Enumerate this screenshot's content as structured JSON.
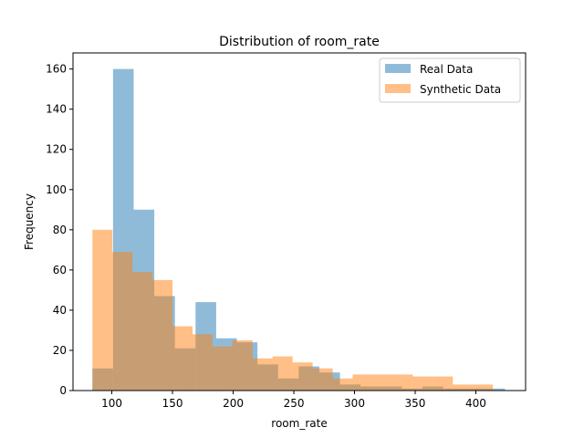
{
  "chart_data": {
    "type": "histogram",
    "title": "Distribution of room_rate",
    "xlabel": "room_rate",
    "ylabel": "Frequency",
    "xlim": [
      68,
      441
    ],
    "ylim": [
      0,
      168
    ],
    "xticks": [
      100,
      150,
      200,
      250,
      300,
      350,
      400
    ],
    "yticks": [
      0,
      20,
      40,
      60,
      80,
      100,
      120,
      140,
      160
    ],
    "grid": false,
    "legend_position": "top-right",
    "series": [
      {
        "name": "Real Data",
        "color": "#1f77b4",
        "alpha": 0.5,
        "bins": [
          {
            "x0": 84,
            "x1": 101,
            "count": 11
          },
          {
            "x0": 101,
            "x1": 118,
            "count": 160
          },
          {
            "x0": 118,
            "x1": 135,
            "count": 90
          },
          {
            "x0": 135,
            "x1": 152,
            "count": 47
          },
          {
            "x0": 152,
            "x1": 169,
            "count": 21
          },
          {
            "x0": 169,
            "x1": 186,
            "count": 44
          },
          {
            "x0": 186,
            "x1": 203,
            "count": 26
          },
          {
            "x0": 203,
            "x1": 220,
            "count": 24
          },
          {
            "x0": 220,
            "x1": 237,
            "count": 13
          },
          {
            "x0": 237,
            "x1": 254,
            "count": 6
          },
          {
            "x0": 254,
            "x1": 271,
            "count": 12
          },
          {
            "x0": 271,
            "x1": 288,
            "count": 9
          },
          {
            "x0": 288,
            "x1": 305,
            "count": 3
          },
          {
            "x0": 305,
            "x1": 322,
            "count": 2
          },
          {
            "x0": 322,
            "x1": 339,
            "count": 2
          },
          {
            "x0": 339,
            "x1": 356,
            "count": 1
          },
          {
            "x0": 356,
            "x1": 373,
            "count": 2
          },
          {
            "x0": 373,
            "x1": 390,
            "count": 1
          },
          {
            "x0": 390,
            "x1": 407,
            "count": 1
          },
          {
            "x0": 407,
            "x1": 424,
            "count": 1
          }
        ]
      },
      {
        "name": "Synthetic Data",
        "color": "#ff7f0e",
        "alpha": 0.5,
        "bins": [
          {
            "x0": 84,
            "x1": 100.5,
            "count": 80
          },
          {
            "x0": 100.5,
            "x1": 117,
            "count": 69
          },
          {
            "x0": 117,
            "x1": 133.5,
            "count": 59
          },
          {
            "x0": 133.5,
            "x1": 150,
            "count": 55
          },
          {
            "x0": 150,
            "x1": 166.5,
            "count": 32
          },
          {
            "x0": 166.5,
            "x1": 183,
            "count": 28
          },
          {
            "x0": 183,
            "x1": 199.5,
            "count": 22
          },
          {
            "x0": 199.5,
            "x1": 216,
            "count": 25
          },
          {
            "x0": 216,
            "x1": 232.5,
            "count": 16
          },
          {
            "x0": 232.5,
            "x1": 249,
            "count": 17
          },
          {
            "x0": 249,
            "x1": 265.5,
            "count": 14
          },
          {
            "x0": 265.5,
            "x1": 282,
            "count": 11
          },
          {
            "x0": 282,
            "x1": 298.5,
            "count": 6
          },
          {
            "x0": 298.5,
            "x1": 315,
            "count": 8
          },
          {
            "x0": 315,
            "x1": 331.5,
            "count": 8
          },
          {
            "x0": 331.5,
            "x1": 348,
            "count": 8
          },
          {
            "x0": 348,
            "x1": 364.5,
            "count": 7
          },
          {
            "x0": 364.5,
            "x1": 381,
            "count": 7
          },
          {
            "x0": 381,
            "x1": 397.5,
            "count": 3
          },
          {
            "x0": 397.5,
            "x1": 414,
            "count": 3
          }
        ]
      }
    ]
  }
}
